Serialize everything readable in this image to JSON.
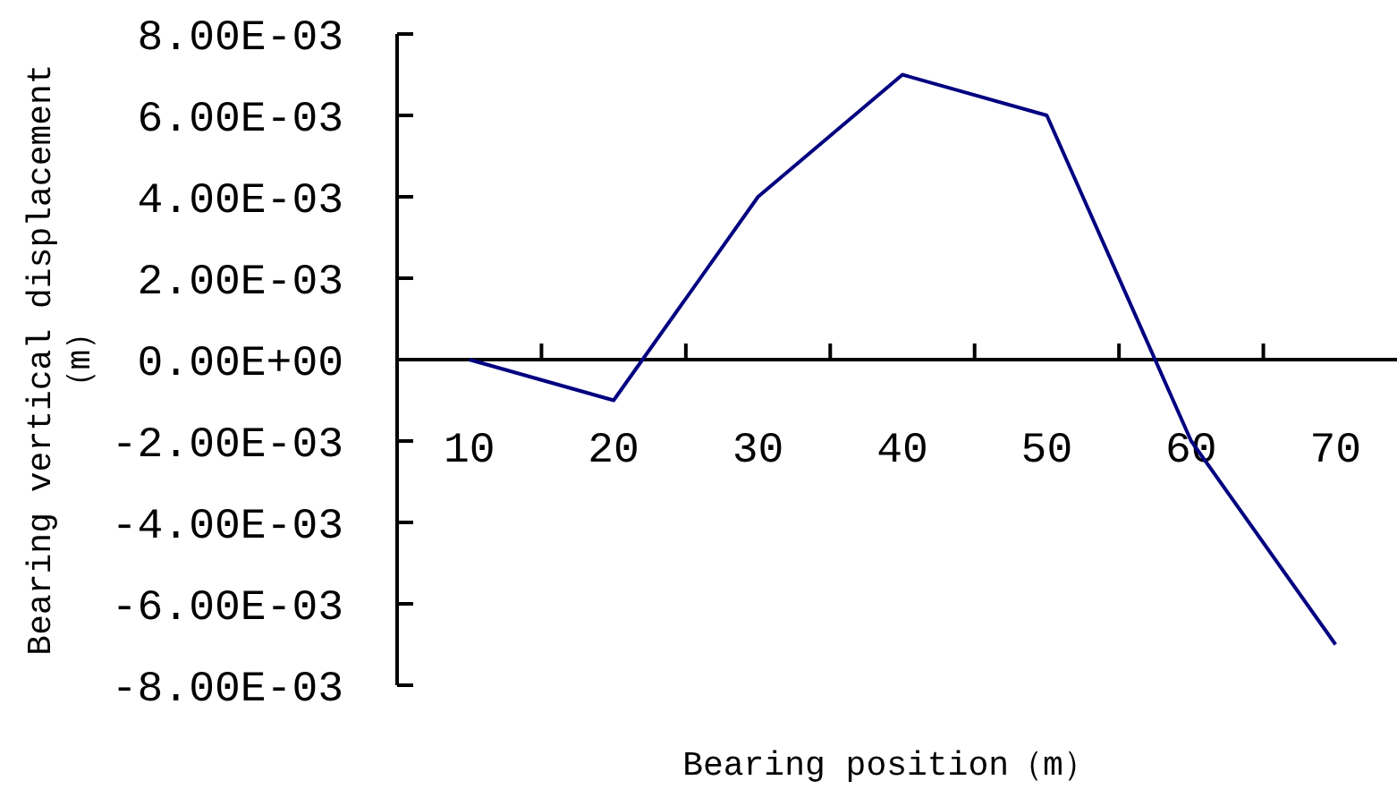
{
  "chart_data": {
    "type": "line",
    "xlabel": "Bearing position（m）",
    "ylabel": "Bearing vertical displacement（m）",
    "categories": [
      "10",
      "20",
      "30",
      "40",
      "50",
      "60",
      "70"
    ],
    "series": [
      {
        "color": "#000080",
        "values": [
          0,
          -0.001,
          0.004,
          0.007,
          0.006,
          -0.002,
          -0.007
        ]
      }
    ],
    "ylim": [
      -0.008,
      0.008
    ],
    "yticks": [
      {
        "value": -0.008,
        "label": "-8.00E-03"
      },
      {
        "value": -0.006,
        "label": "-6.00E-03"
      },
      {
        "value": -0.004,
        "label": "-4.00E-03"
      },
      {
        "value": -0.002,
        "label": "-2.00E-03"
      },
      {
        "value": 0,
        "label": "0.00E+00"
      },
      {
        "value": 0.002,
        "label": "2.00E-03"
      },
      {
        "value": 0.004,
        "label": "4.00E-03"
      },
      {
        "value": 0.006,
        "label": "6.00E-03"
      },
      {
        "value": 0.008,
        "label": "8.00E-03"
      }
    ],
    "grid": false,
    "marker": "none",
    "line_style": "solid"
  }
}
